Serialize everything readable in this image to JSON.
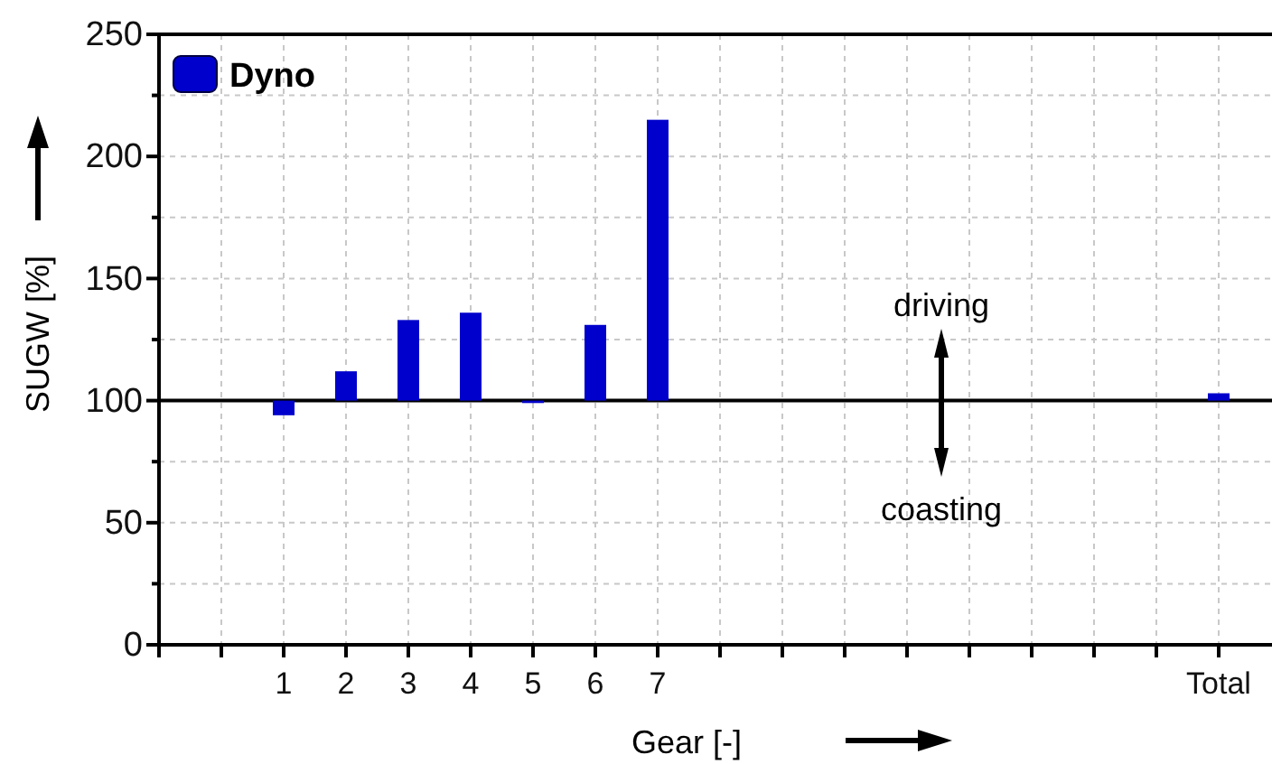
{
  "chart_data": {
    "type": "bar",
    "xlabel": "Gear [-]",
    "ylabel": "SUGW [%]",
    "categories": [
      null,
      "1",
      "2",
      "3",
      "4",
      "5",
      "6",
      "7",
      null,
      null,
      null,
      null,
      null,
      null,
      null,
      null,
      "Total"
    ],
    "series": [
      {
        "name": "Dyno",
        "color": "#0000cc",
        "values": [
          null,
          -6,
          12,
          33,
          36,
          -1,
          31,
          115,
          null,
          null,
          null,
          null,
          null,
          null,
          null,
          null,
          3
        ],
        "base": [
          null,
          100,
          100,
          100,
          100,
          100,
          100,
          100,
          null,
          null,
          null,
          null,
          null,
          null,
          null,
          null,
          100
        ]
      }
    ],
    "ylim": [
      0,
      250
    ],
    "yticks": [
      0,
      {
        "value": 25,
        "label": null
      },
      50,
      {
        "value": 75,
        "label": null
      },
      100,
      {
        "value": 125,
        "label": null
      },
      150,
      {
        "value": 175,
        "label": null
      },
      200,
      {
        "value": 225,
        "label": null
      },
      250
    ],
    "ref_lines": [
      {
        "axis": "y",
        "value": 100,
        "color": "#000000"
      }
    ],
    "annotations": [
      "driving",
      "coasting"
    ],
    "grid": true,
    "legend": "top left"
  }
}
